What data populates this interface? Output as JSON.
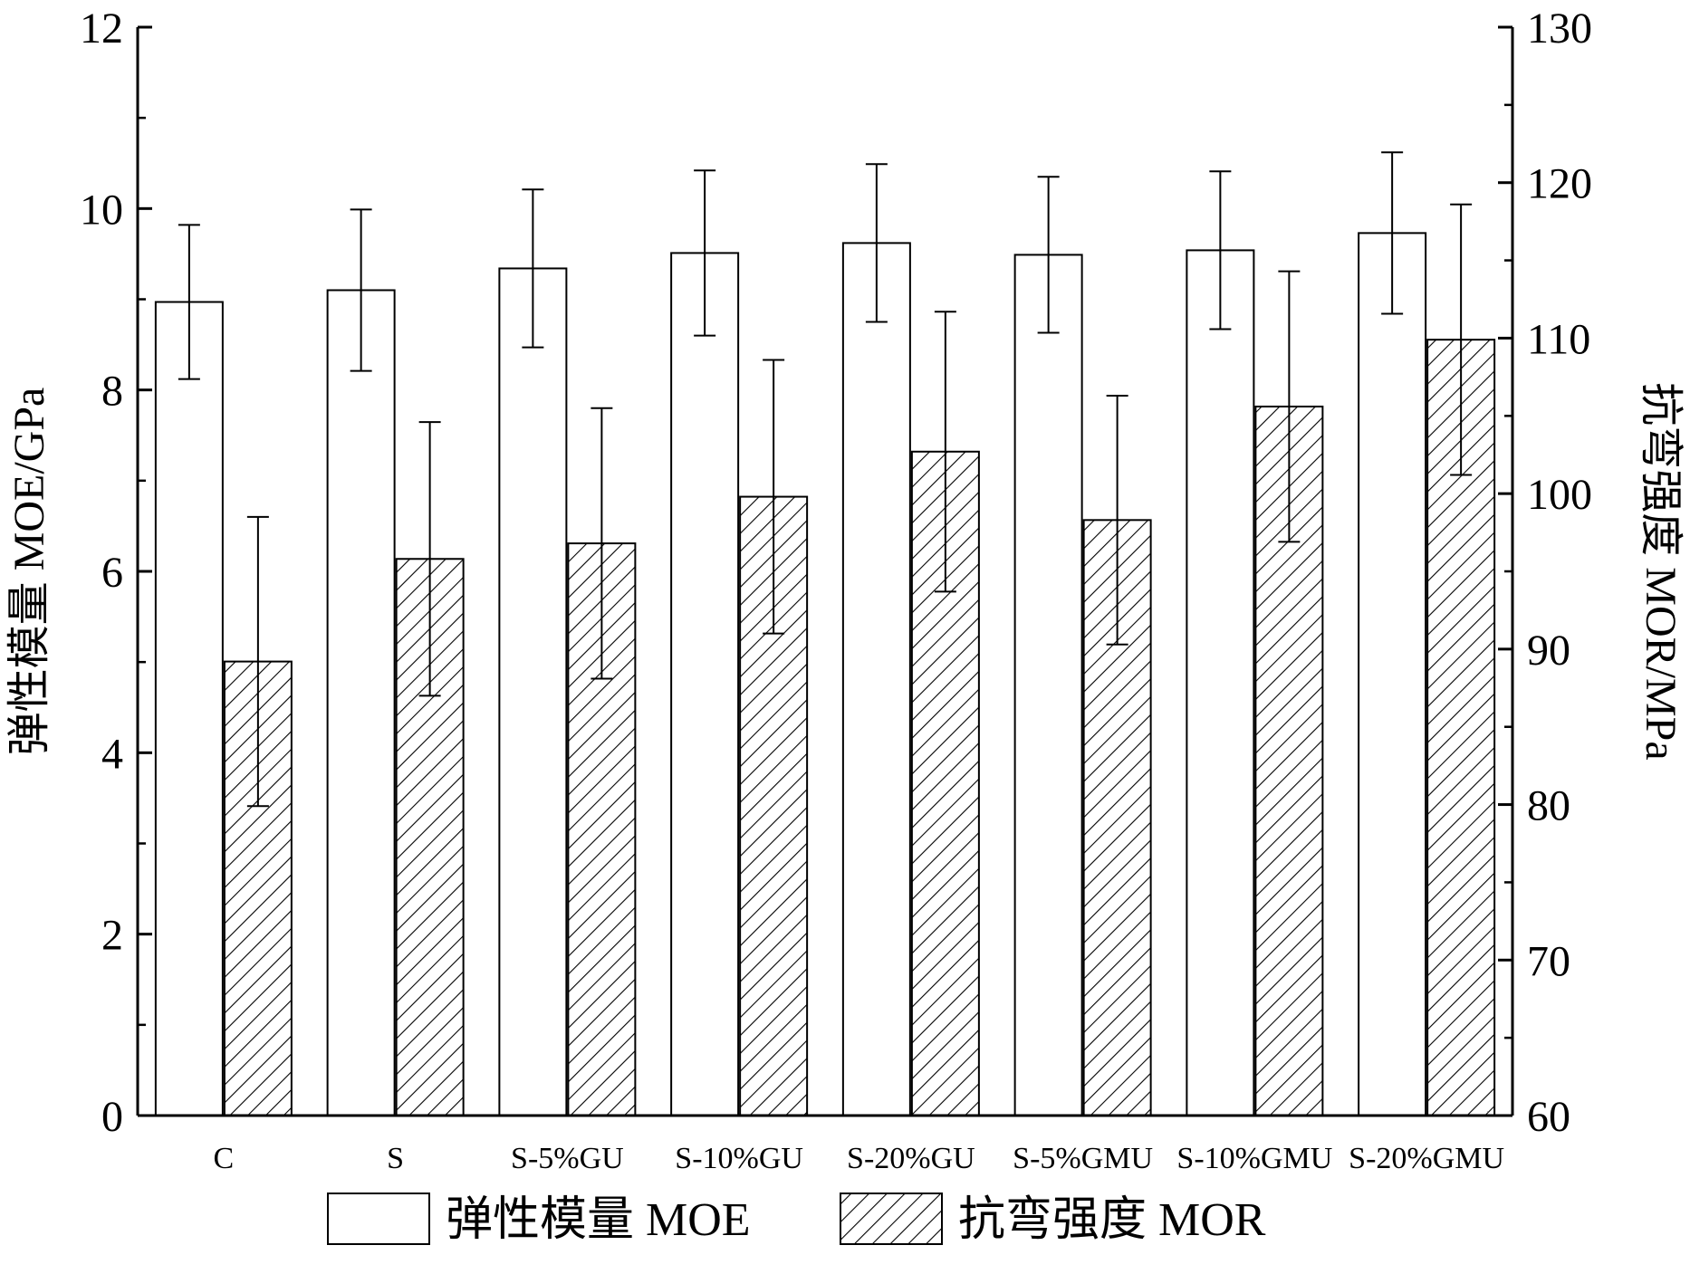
{
  "chart_data": {
    "type": "bar",
    "categories": [
      "C",
      "S",
      "S-5%GU",
      "S-10%GU",
      "S-20%GU",
      "S-5%GMU",
      "S-10%GMU",
      "S-20%GMU"
    ],
    "series": [
      {
        "name": "弹性模量 MOE",
        "axis": "left",
        "pattern": "empty",
        "values": [
          8.97,
          9.1,
          9.34,
          9.51,
          9.62,
          9.49,
          9.54,
          9.73
        ],
        "errors": [
          0.85,
          0.89,
          0.87,
          0.91,
          0.87,
          0.86,
          0.87,
          0.89
        ]
      },
      {
        "name": "抗弯强度 MOR",
        "axis": "right",
        "pattern": "diagonal-hatch",
        "values": [
          89.2,
          95.8,
          96.8,
          99.8,
          102.7,
          98.3,
          105.6,
          109.9
        ],
        "errors": [
          9.3,
          8.8,
          8.7,
          8.8,
          9.0,
          8.0,
          8.7,
          8.7
        ]
      }
    ],
    "ylabel": "弹性模量  MOE/GPa",
    "ylabel_right": "抗弯强度  MOR/MPa",
    "ylim": [
      0,
      12
    ],
    "ylim_right": [
      60,
      130
    ],
    "yticks": [
      "0",
      "2",
      "4",
      "6",
      "8",
      "10",
      "12"
    ],
    "yticks_right": [
      "60",
      "70",
      "80",
      "90",
      "100",
      "110",
      "120",
      "130"
    ],
    "legend_position": "bottom",
    "grid": false,
    "colors": {
      "stroke": "#000000",
      "fill": "#ffffff"
    }
  }
}
